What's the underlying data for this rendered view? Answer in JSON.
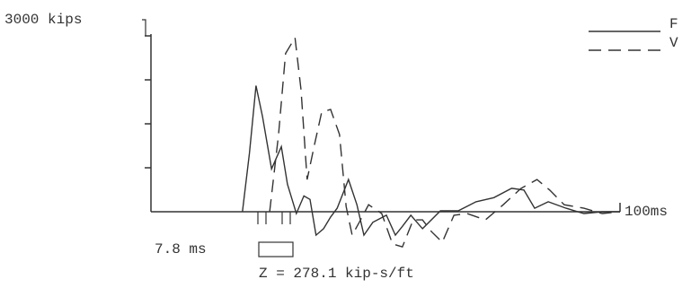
{
  "chart_data": {
    "type": "line",
    "xlim": [
      0,
      100
    ],
    "xticks": [
      {
        "value": 100,
        "label": "100ms"
      }
    ],
    "ylim": [
      0,
      3000
    ],
    "yticks": [
      {
        "value": 750,
        "label": null
      },
      {
        "value": 1500,
        "label": null
      },
      {
        "value": 2250,
        "label": null
      },
      {
        "value": 3000,
        "label": "3000 kips"
      }
    ],
    "annotations": [
      "7.8 ms",
      "Z = 278.1 kip-s/ft"
    ],
    "series": [
      {
        "name": "F",
        "color": "#333333",
        "dash": "solid",
        "x": [
          19.5,
          21,
          22.4,
          23.8,
          25.7,
          27.8,
          29.1,
          31,
          32.6,
          33.9,
          35.2,
          36.8,
          38.3,
          39.7,
          42.1,
          43.9,
          45.4,
          47.3,
          50.2,
          52.1,
          53.6,
          55.4,
          57.9,
          61.7,
          65.5,
          69.3,
          73.1,
          76.9,
          79.5,
          81.8,
          84.7,
          88.5,
          92.3,
          96.2,
          100
        ],
        "values": [
          0,
          1000,
          2150,
          1620,
          730,
          1110,
          470,
          -30,
          270,
          210,
          -400,
          -290,
          -90,
          60,
          550,
          120,
          -400,
          -180,
          -60,
          -400,
          -250,
          -60,
          -290,
          15,
          15,
          170,
          240,
          400,
          370,
          60,
          170,
          60,
          -30,
          0,
          0
        ]
      },
      {
        "name": "V",
        "color": "#333333",
        "dash": "dashed",
        "x": [
          25.3,
          27.2,
          28.7,
          30.7,
          32,
          33.3,
          34.9,
          36.4,
          38.3,
          40.2,
          41.6,
          42.9,
          44.4,
          46.4,
          49.2,
          51.5,
          53.6,
          55.9,
          57.9,
          59.8,
          62.1,
          64.6,
          67.4,
          71.3,
          75.1,
          78.9,
          82.3,
          85,
          88.1,
          92.3,
          96.2,
          100
        ],
        "values": [
          0,
          1320,
          2700,
          2970,
          2080,
          550,
          1160,
          1700,
          1745,
          1320,
          90,
          -400,
          -180,
          120,
          -30,
          -550,
          -600,
          -140,
          -140,
          -340,
          -520,
          -60,
          -30,
          -140,
          120,
          400,
          550,
          370,
          120,
          60,
          -30,
          0
        ]
      }
    ]
  }
}
